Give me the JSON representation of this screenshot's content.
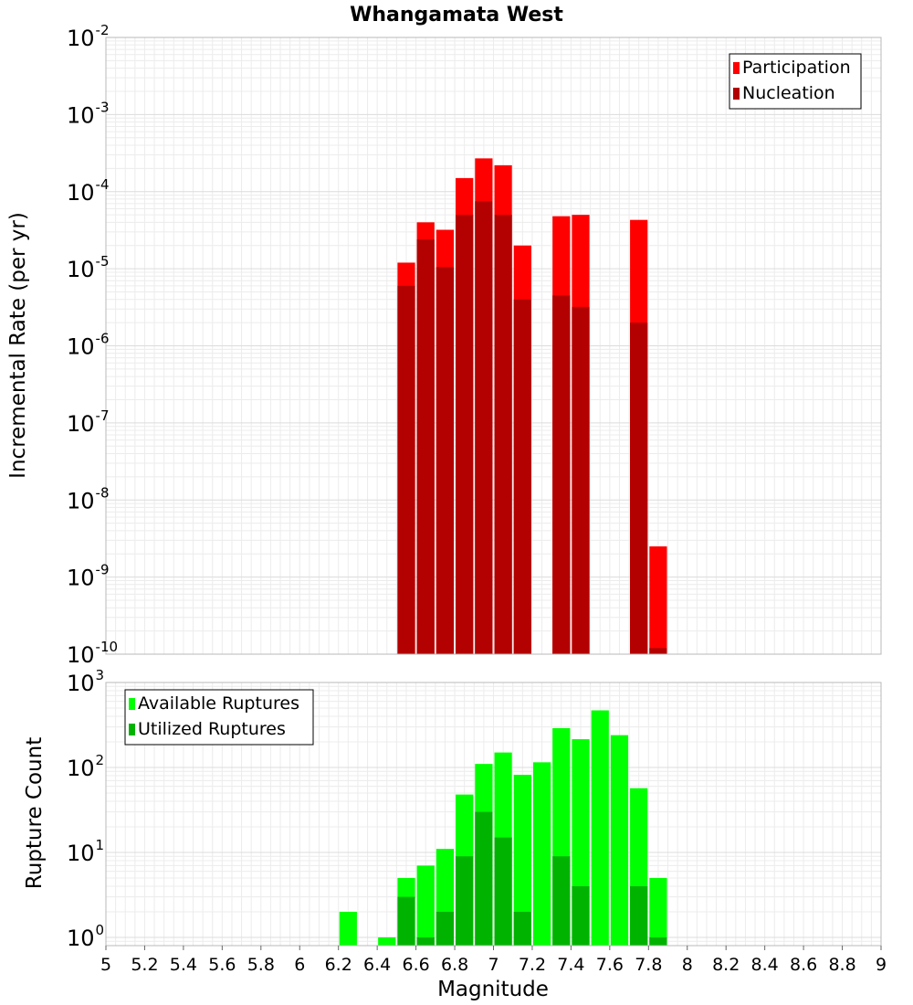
{
  "chart_data": [
    {
      "type": "bar",
      "title": "Whangamata West",
      "xlabel": "",
      "ylabel": "Incremental Rate (per yr)",
      "y_scale": "log",
      "ylim": [
        1e-10,
        0.01
      ],
      "xlim": [
        5,
        9
      ],
      "grid": true,
      "legend_position": "top-right",
      "x": [
        6.55,
        6.65,
        6.75,
        6.85,
        6.95,
        7.05,
        7.15,
        7.35,
        7.45,
        7.75,
        7.85
      ],
      "series": [
        {
          "name": "Participation",
          "color": "#ff0000",
          "values": [
            1.2e-05,
            4e-05,
            3.2e-05,
            0.00015,
            0.00027,
            0.00022,
            2e-05,
            4.8e-05,
            5e-05,
            4.3e-05,
            2.5e-09
          ]
        },
        {
          "name": "Nucleation",
          "color": "#b30000",
          "values": [
            6e-06,
            2.4e-05,
            1.05e-05,
            5e-05,
            7.5e-05,
            5e-05,
            4e-06,
            4.5e-06,
            3.2e-06,
            2e-06,
            1.2e-10
          ]
        }
      ]
    },
    {
      "type": "bar",
      "title": "",
      "xlabel": "Magnitude",
      "ylabel": "Rupture Count",
      "y_scale": "log",
      "ylim": [
        0.8,
        1000
      ],
      "xlim": [
        5,
        9
      ],
      "grid": true,
      "legend_position": "top-left",
      "x_ticks": [
        "5",
        "5.2",
        "5.4",
        "5.6",
        "5.8",
        "6",
        "6.2",
        "6.4",
        "6.6",
        "6.8",
        "7",
        "7.2",
        "7.4",
        "7.6",
        "7.8",
        "8",
        "8.2",
        "8.4",
        "8.6",
        "8.8",
        "9"
      ],
      "x": [
        6.25,
        6.45,
        6.55,
        6.65,
        6.75,
        6.85,
        6.95,
        7.05,
        7.15,
        7.25,
        7.35,
        7.45,
        7.55,
        7.65,
        7.75,
        7.85
      ],
      "series": [
        {
          "name": "Available Ruptures",
          "color": "#00ff00",
          "values": [
            2,
            1,
            5,
            7,
            11,
            48,
            110,
            150,
            82,
            115,
            290,
            215,
            470,
            240,
            57,
            5
          ]
        },
        {
          "name": "Utilized Ruptures",
          "color": "#00b300",
          "values": [
            0,
            0,
            3,
            1,
            2,
            9,
            30,
            15,
            2,
            0,
            9,
            4,
            0,
            0,
            4,
            1
          ]
        }
      ]
    }
  ]
}
